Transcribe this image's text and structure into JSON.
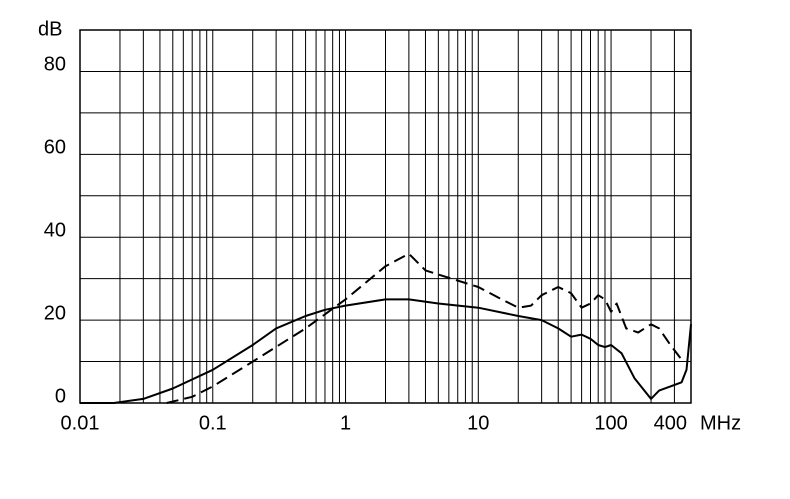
{
  "chart_data": {
    "type": "line",
    "y_label": "dB",
    "x_label": "MHz",
    "x_log": true,
    "xlim": [
      0.01,
      400
    ],
    "ylim": [
      0,
      90
    ],
    "xticks": [
      0.01,
      0.1,
      1,
      10,
      100,
      400
    ],
    "yticks": [
      0,
      20,
      40,
      60,
      80
    ],
    "xminor_ticks": [
      0.02,
      0.03,
      0.04,
      0.05,
      0.06,
      0.07,
      0.08,
      0.09,
      0.2,
      0.3,
      0.4,
      0.5,
      0.6,
      0.7,
      0.8,
      0.9,
      2,
      3,
      4,
      5,
      6,
      7,
      8,
      9,
      20,
      30,
      40,
      50,
      60,
      70,
      80,
      90,
      200,
      300
    ],
    "yminor_ticks": [
      10,
      30,
      50,
      70,
      90
    ],
    "grid": true,
    "series": [
      {
        "color": "#000000",
        "dash": "solid",
        "x": [
          0.01,
          0.018,
          0.03,
          0.05,
          0.1,
          0.2,
          0.3,
          0.5,
          0.7,
          1,
          2,
          3,
          5,
          10,
          20,
          30,
          40,
          50,
          60,
          70,
          80,
          90,
          100,
          120,
          150,
          200,
          230,
          280,
          340,
          370,
          400
        ],
        "values": [
          0,
          0,
          1,
          3.5,
          8,
          14,
          18,
          21,
          22.5,
          23.5,
          25,
          25,
          24,
          23,
          21,
          20,
          18,
          16,
          16.5,
          15.5,
          14,
          13.5,
          14,
          12,
          6,
          1,
          3,
          4,
          5,
          8,
          19
        ]
      },
      {
        "color": "#000000",
        "dash": "dashed",
        "x": [
          0.045,
          0.07,
          0.1,
          0.2,
          0.5,
          1,
          2,
          3,
          4,
          5,
          10,
          15,
          20,
          25,
          30,
          40,
          50,
          60,
          70,
          80,
          90,
          100,
          110,
          130,
          160,
          200,
          230,
          280,
          330,
          350
        ],
        "values": [
          0,
          1.5,
          4,
          10,
          18,
          25,
          33,
          36,
          32,
          31,
          28,
          25,
          23,
          23.5,
          26,
          28,
          26.5,
          23,
          24,
          26,
          25,
          22,
          24,
          18,
          17,
          19,
          18,
          14,
          11,
          10
        ]
      }
    ]
  }
}
